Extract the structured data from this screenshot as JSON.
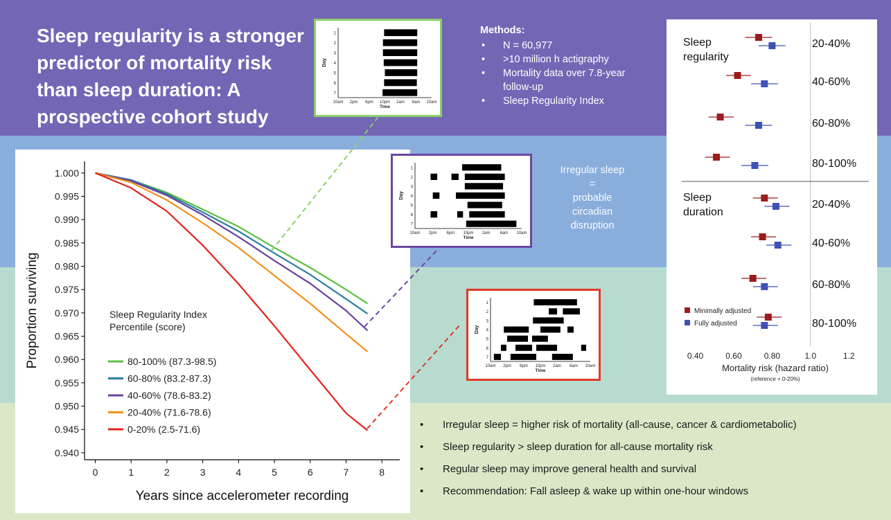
{
  "title": "Sleep regularity is a stronger predictor of mortality risk than sleep duration: A prospective cohort study",
  "methods": {
    "heading": "Methods:",
    "items": [
      "N = 60,977",
      ">10 million h actigraphy",
      "Mortality data over 7.8-year follow-up",
      "Sleep Regularity Index"
    ]
  },
  "irregular_note": [
    "Irregular sleep",
    "=",
    "probable",
    "circadian",
    "disruption"
  ],
  "colors": {
    "purple_band": "#7366b5",
    "blue_band": "#8aaedc",
    "teal_band": "#b7dccf",
    "green_band": "#dbe8c8",
    "minimally_adjusted": "#9b1c1c",
    "fully_adjusted": "#3f51b5"
  },
  "raster_plots": [
    {
      "border_color": "#8ccf69",
      "y_label": "Day",
      "x_label": "Time",
      "x_ticks": [
        "10am",
        "2pm",
        "6pm",
        "10pm",
        "2am",
        "6am",
        "10am"
      ],
      "days": [
        "1",
        "2",
        "3",
        "4",
        "5",
        "6",
        "7"
      ],
      "sleep_bouts_hours": [
        [
          [
            11.8,
            20.3
          ]
        ],
        [
          [
            11.5,
            20.3
          ]
        ],
        [
          [
            11.5,
            20.3
          ]
        ],
        [
          [
            11.7,
            20.3
          ]
        ],
        [
          [
            12.0,
            20.3
          ]
        ],
        [
          [
            11.8,
            20.2
          ]
        ],
        [
          [
            11.4,
            20.3
          ]
        ]
      ]
    },
    {
      "border_color": "#6b47a3",
      "y_label": "Day",
      "x_label": "Time",
      "x_ticks": [
        "10am",
        "2pm",
        "6pm",
        "10pm",
        "2am",
        "6am",
        "10am"
      ],
      "days": [
        "1",
        "2",
        "3",
        "4",
        "5",
        "6",
        "7"
      ],
      "sleep_bouts_hours": [
        [
          [
            10.6,
            19.4
          ]
        ],
        [
          [
            3.5,
            5.0
          ],
          [
            8.2,
            9.8
          ],
          [
            11.2,
            20.2
          ]
        ],
        [
          [
            11.2,
            19.8
          ]
        ],
        [
          [
            4.0,
            5.5
          ],
          [
            9.2,
            20.2
          ]
        ],
        [
          [
            11.8,
            19.6
          ]
        ],
        [
          [
            3.5,
            5.0
          ],
          [
            9.5,
            10.8
          ],
          [
            12.2,
            20.2
          ]
        ],
        [
          [
            11.5,
            22.8
          ]
        ]
      ]
    },
    {
      "border_color": "#e03828",
      "y_label": "Day",
      "x_label": "Time",
      "x_ticks": [
        "10am",
        "2pm",
        "6pm",
        "10pm",
        "2am",
        "6am",
        "10am"
      ],
      "days": [
        "1",
        "2",
        "3",
        "4",
        "5",
        "6",
        "7"
      ],
      "sleep_bouts_hours": [
        [
          [
            10.4,
            20.8
          ]
        ],
        [
          [
            14.0,
            16.0
          ],
          [
            17.4,
            21.5
          ]
        ],
        [
          [
            10.2,
            17.6
          ]
        ],
        [
          [
            3.2,
            9.2
          ],
          [
            12.0,
            16.8
          ],
          [
            18.5,
            20.0
          ]
        ],
        [
          [
            4.0,
            9.0
          ],
          [
            10.0,
            13.8
          ]
        ],
        [
          [
            2.5,
            3.8
          ],
          [
            6.0,
            10.0
          ],
          [
            11.0,
            16.0
          ],
          [
            21.8,
            23.0
          ]
        ],
        [
          [
            0.8,
            2.5
          ],
          [
            4.8,
            11.0
          ],
          [
            14.8,
            19.8
          ]
        ]
      ]
    }
  ],
  "chart_data": [
    {
      "type": "line",
      "title": "",
      "xlabel": "Years since accelerometer recording",
      "ylabel": "Proportion surviving",
      "xlim": [
        -0.3,
        8.5
      ],
      "ylim": [
        0.9385,
        1.0025
      ],
      "x_ticks": [
        0,
        1,
        2,
        3,
        4,
        5,
        6,
        7,
        8
      ],
      "y_ticks": [
        0.94,
        0.945,
        0.95,
        0.955,
        0.96,
        0.965,
        0.97,
        0.975,
        0.98,
        0.985,
        0.99,
        0.995,
        1.0
      ],
      "y_tick_labels": [
        "0.940",
        "0.945",
        "0.950",
        "0.955",
        "0.960",
        "0.965",
        "0.970",
        "0.975",
        "0.980",
        "0.985",
        "0.990",
        "0.995",
        "1.000"
      ],
      "legend_title_lines": [
        "Sleep Regularity Index",
        "Percentile (score)"
      ],
      "legend_position": "bottom-left",
      "series": [
        {
          "name": "80-100% (87.3-98.5)",
          "color": "#5cbf3e",
          "x": [
            0,
            1,
            2,
            3,
            4,
            5,
            6,
            7,
            7.6
          ],
          "y": [
            1.0,
            0.9985,
            0.9958,
            0.9922,
            0.9885,
            0.984,
            0.9797,
            0.975,
            0.972
          ]
        },
        {
          "name": "60-80% (83.2-87.3)",
          "color": "#2a7ea1",
          "x": [
            0,
            1,
            2,
            3,
            4,
            5,
            6,
            7,
            7.6
          ],
          "y": [
            1.0,
            0.9985,
            0.9955,
            0.9916,
            0.9875,
            0.9828,
            0.9782,
            0.973,
            0.9698
          ]
        },
        {
          "name": "40-60% (78.6-83.2)",
          "color": "#6a3f9e",
          "x": [
            0,
            1,
            2,
            3,
            4,
            5,
            6,
            7,
            7.6
          ],
          "y": [
            1.0,
            0.9983,
            0.9952,
            0.991,
            0.9863,
            0.9812,
            0.9763,
            0.9705,
            0.9662
          ]
        },
        {
          "name": "20-40% (71.6-78.6)",
          "color": "#f28f1c",
          "x": [
            0,
            1,
            2,
            3,
            4,
            5,
            6,
            7,
            7.6
          ],
          "y": [
            1.0,
            0.998,
            0.9942,
            0.9893,
            0.984,
            0.978,
            0.972,
            0.9655,
            0.9617
          ]
        },
        {
          "name": "0-20% (2.5-71.6)",
          "color": "#e3231e",
          "x": [
            0,
            1,
            2,
            3,
            4,
            5,
            6,
            7,
            7.6
          ],
          "y": [
            1.0,
            0.9968,
            0.9918,
            0.9845,
            0.9762,
            0.9672,
            0.9578,
            0.9485,
            0.9448
          ]
        }
      ]
    },
    {
      "type": "scatter",
      "title": "",
      "xlabel": "Mortality risk (hazard ratio)",
      "x_note": "(reference = 0-20%)",
      "xlim": [
        0.38,
        1.21
      ],
      "x_ticks": [
        0.4,
        0.6,
        0.8,
        1.0,
        1.2
      ],
      "x_tick_labels": [
        "0.40",
        "0.60",
        "0.80",
        "1.0",
        "1.2"
      ],
      "reference_line": 1.0,
      "legend_position": "bottom-left",
      "groups": [
        {
          "label": "Sleep regularity",
          "label_lines": [
            "Sleep",
            "regularity"
          ],
          "rows": [
            "20-40%",
            "40-60%",
            "60-80%",
            "80-100%"
          ]
        },
        {
          "label": "Sleep duration",
          "label_lines": [
            "Sleep",
            "duration"
          ],
          "rows": [
            "20-40%",
            "40-60%",
            "60-80%",
            "80-100%"
          ]
        }
      ],
      "series": [
        {
          "name": "Minimally adjusted",
          "color": "#9b1c1c",
          "estimates": [
            0.73,
            0.62,
            0.53,
            0.51,
            0.76,
            0.75,
            0.7,
            0.78
          ],
          "ci_low": [
            0.66,
            0.56,
            0.47,
            0.45,
            0.7,
            0.69,
            0.64,
            0.72
          ],
          "ci_high": [
            0.8,
            0.69,
            0.6,
            0.58,
            0.83,
            0.82,
            0.77,
            0.85
          ]
        },
        {
          "name": "Fully adjusted",
          "color": "#3f51b5",
          "estimates": [
            0.8,
            0.76,
            0.73,
            0.71,
            0.82,
            0.83,
            0.76,
            0.76
          ],
          "ci_low": [
            0.73,
            0.69,
            0.66,
            0.64,
            0.76,
            0.77,
            0.7,
            0.7
          ],
          "ci_high": [
            0.87,
            0.83,
            0.8,
            0.78,
            0.89,
            0.9,
            0.83,
            0.83
          ]
        }
      ]
    }
  ],
  "findings": [
    "Irregular sleep = higher risk of mortality (all-cause, cancer & cardiometabolic)",
    "Sleep regularity > sleep duration for all-cause mortality risk",
    "Regular sleep may improve general health and survival",
    "Recommendation: Fall asleep & wake up within one-hour windows"
  ]
}
